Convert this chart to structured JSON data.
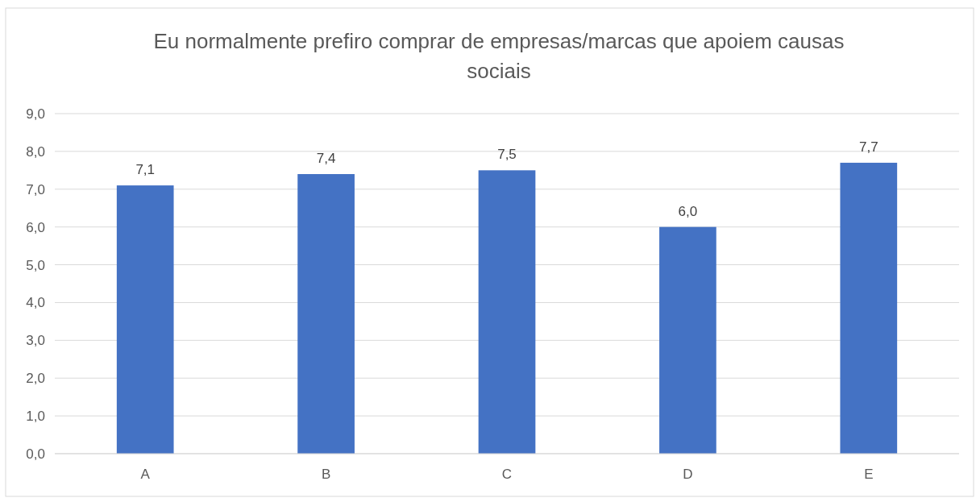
{
  "chart_data": {
    "type": "bar",
    "title": "Eu normalmente prefiro comprar de empresas/marcas que apoiem causas sociais",
    "categories": [
      "A",
      "B",
      "C",
      "D",
      "E"
    ],
    "values": [
      7.1,
      7.4,
      7.5,
      6.0,
      7.7
    ],
    "value_labels": [
      "7,1",
      "7,4",
      "7,5",
      "6,0",
      "7,7"
    ],
    "color": "#4472c4",
    "ylim": [
      0,
      9
    ],
    "yticks": [
      {
        "value": 0,
        "label": "0,0"
      },
      {
        "value": 1,
        "label": "1,0"
      },
      {
        "value": 2,
        "label": "2,0"
      },
      {
        "value": 3,
        "label": "3,0"
      },
      {
        "value": 4,
        "label": "4,0"
      },
      {
        "value": 5,
        "label": "5,0"
      },
      {
        "value": 6,
        "label": "6,0"
      },
      {
        "value": 7,
        "label": "7,0"
      },
      {
        "value": 8,
        "label": "8,0"
      },
      {
        "value": 9,
        "label": "9,0"
      }
    ],
    "grid": "y"
  }
}
